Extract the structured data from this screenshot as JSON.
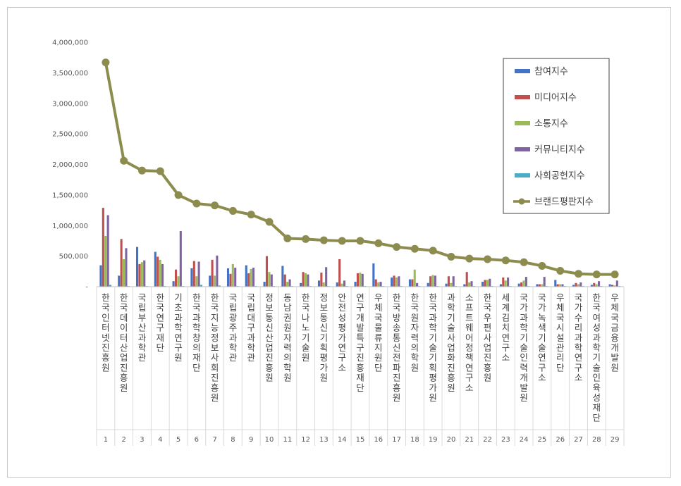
{
  "chart_data": {
    "type": "bar",
    "ylim": [
      0,
      4000000
    ],
    "yticks": [
      "4,000,000",
      "3,500,000",
      "3,000,000",
      "2,500,000",
      "2,000,000",
      "1,500,000",
      "1,000,000",
      "500,000",
      "-"
    ],
    "index_labels": [
      "1",
      "2",
      "3",
      "4",
      "5",
      "6",
      "7",
      "8",
      "9",
      "10",
      "11",
      "12",
      "13",
      "14",
      "15",
      "16",
      "17",
      "18",
      "19",
      "20",
      "21",
      "22",
      "23",
      "24",
      "25",
      "26",
      "27",
      "28",
      "29"
    ],
    "categories": [
      "한국인터넷진흥원",
      "한국데이터산업진흥원",
      "국립부산과학관",
      "한국연구재단",
      "기초과학연구원",
      "한국과학창의재단",
      "한국지능정보사회진흥원",
      "국립광주과학관",
      "국립대구과학관",
      "정보통신산업진흥원",
      "동남권원자력의학원",
      "한국나노기술원",
      "정보통신기획평가원",
      "안전성평가연구소",
      "연구개발특구진흥재단",
      "우체국물류지원단",
      "한국방송통신전파진흥원",
      "한국원자력의학원",
      "한국과학기술기획평가원",
      "과학기술사업화진흥원",
      "소프트웨어정책연구소",
      "한국우편사업진흥원",
      "세계김치연구소",
      "국가과학기술인력개발원",
      "국가녹색기술연구소",
      "우체국시설관리단",
      "국가수리과학연구소",
      "한국여성과학기술인육성재단",
      "우체국금융개발원"
    ],
    "series": [
      {
        "name": "참여지수",
        "color": "#4472c4",
        "values": [
          350000,
          180000,
          650000,
          570000,
          90000,
          300000,
          180000,
          300000,
          350000,
          80000,
          340000,
          60000,
          100000,
          70000,
          80000,
          380000,
          150000,
          120000,
          60000,
          50000,
          40000,
          80000,
          40000,
          50000,
          40000,
          110000,
          30000,
          30000,
          40000
        ]
      },
      {
        "name": "미디어지수",
        "color": "#c0504d",
        "values": [
          1290000,
          780000,
          370000,
          490000,
          280000,
          420000,
          440000,
          210000,
          220000,
          500000,
          200000,
          240000,
          230000,
          450000,
          220000,
          120000,
          180000,
          120000,
          170000,
          170000,
          240000,
          110000,
          150000,
          70000,
          40000,
          40000,
          60000,
          60000,
          30000
        ]
      },
      {
        "name": "소통지수",
        "color": "#9bbb59",
        "values": [
          830000,
          450000,
          400000,
          440000,
          170000,
          170000,
          180000,
          370000,
          290000,
          240000,
          80000,
          220000,
          70000,
          50000,
          230000,
          70000,
          150000,
          280000,
          190000,
          60000,
          70000,
          110000,
          100000,
          100000,
          40000,
          40000,
          40000,
          40000,
          20000
        ]
      },
      {
        "name": "커뮤니티지수",
        "color": "#8064a2",
        "values": [
          1170000,
          630000,
          430000,
          370000,
          910000,
          410000,
          510000,
          310000,
          310000,
          200000,
          120000,
          200000,
          320000,
          100000,
          210000,
          80000,
          170000,
          60000,
          180000,
          170000,
          90000,
          130000,
          150000,
          160000,
          160000,
          40000,
          70000,
          90000,
          100000
        ]
      },
      {
        "name": "사회공헌지수",
        "color": "#4bacc6",
        "values": [
          30000,
          10000,
          10000,
          10000,
          10000,
          30000,
          20000,
          10000,
          10000,
          10000,
          10000,
          10000,
          10000,
          10000,
          10000,
          10000,
          10000,
          10000,
          10000,
          10000,
          10000,
          10000,
          10000,
          10000,
          10000,
          10000,
          10000,
          10000,
          10000
        ]
      },
      {
        "name": "브랜드평판지수",
        "color": "#8c8c4e",
        "kind": "line",
        "values": [
          3670000,
          2060000,
          1900000,
          1890000,
          1500000,
          1360000,
          1330000,
          1240000,
          1180000,
          1060000,
          790000,
          780000,
          760000,
          750000,
          750000,
          710000,
          650000,
          620000,
          590000,
          490000,
          460000,
          450000,
          430000,
          400000,
          340000,
          260000,
          210000,
          200000,
          200000
        ]
      }
    ]
  }
}
